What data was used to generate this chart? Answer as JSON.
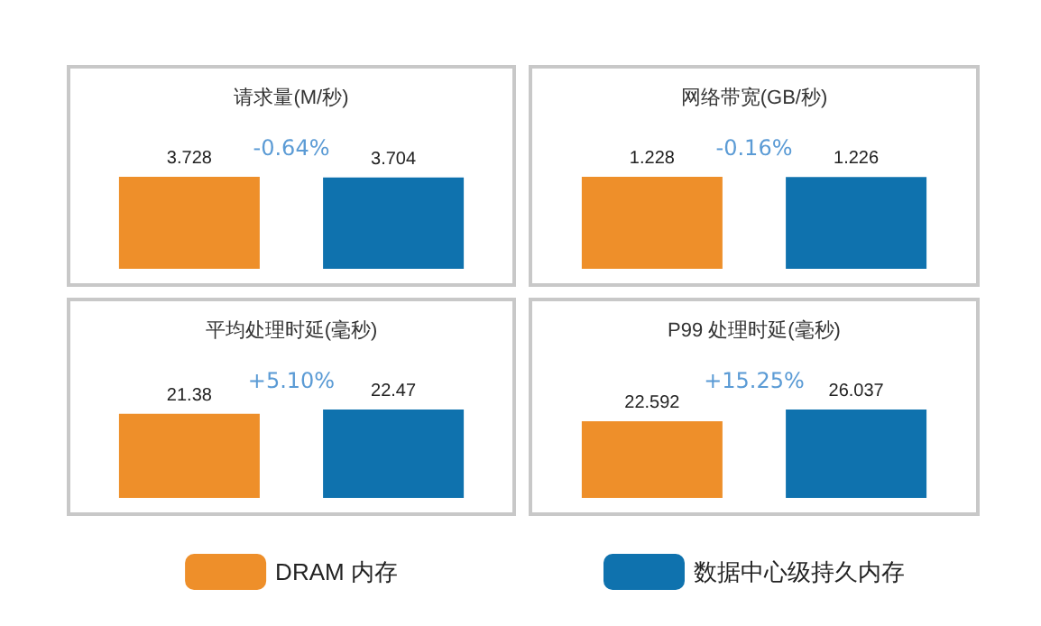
{
  "chart_data": [
    {
      "type": "bar",
      "title": "请求量(M/秒)",
      "categories": [
        null
      ],
      "series": [
        {
          "color": "#ee8f2a",
          "values": [
            3.728
          ]
        },
        {
          "color": "#0f72ae",
          "values": [
            3.704
          ]
        }
      ],
      "data_labels": true,
      "annotations": [
        "-0.64%"
      ],
      "legend": false
    },
    {
      "type": "bar",
      "title": "网络带宽(GB/秒)",
      "categories": [
        null
      ],
      "series": [
        {
          "color": "#ee8f2a",
          "values": [
            1.228
          ]
        },
        {
          "color": "#0f72ae",
          "values": [
            1.226
          ]
        }
      ],
      "data_labels": true,
      "annotations": [
        "-0.16%"
      ],
      "legend": false
    },
    {
      "type": "bar",
      "title": "平均处理时延(毫秒)",
      "categories": [
        null
      ],
      "series": [
        {
          "name": "DRAM 内存",
          "color": "#ee8f2a",
          "values": [
            21.38
          ]
        },
        {
          "color": "#0f72ae",
          "values": [
            22.47
          ]
        }
      ],
      "data_labels": true,
      "annotations": [
        "+5.10%"
      ],
      "legend": "bottom"
    },
    {
      "type": "bar",
      "title": "P99 处理时延(毫秒)",
      "categories": [
        null
      ],
      "series": [
        {
          "color": "#ee8f2a",
          "values": [
            22.592
          ]
        },
        {
          "name": "数据中心级持久内存",
          "color": "#0f72ae",
          "values": [
            26.037
          ]
        }
      ],
      "data_labels": true,
      "annotations": [
        "+15.25%"
      ],
      "legend": "bottom"
    }
  ]
}
